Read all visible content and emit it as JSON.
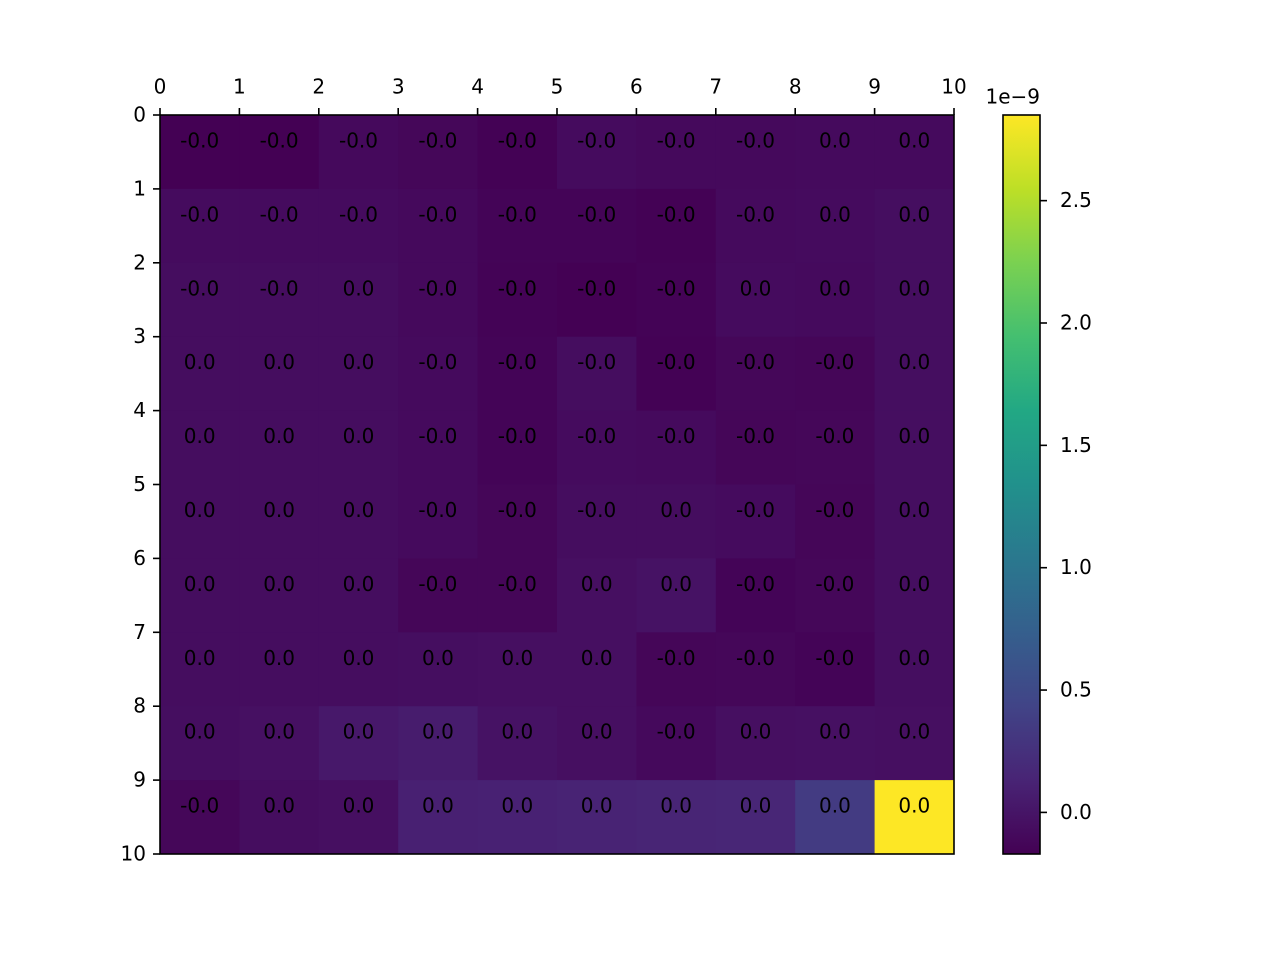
{
  "chart_data": {
    "type": "heatmap",
    "title": "",
    "xlabel": "",
    "ylabel": "",
    "x_ticks": [
      "0",
      "1",
      "2",
      "3",
      "4",
      "5",
      "6",
      "7",
      "8",
      "9",
      "10"
    ],
    "y_ticks": [
      "0",
      "1",
      "2",
      "3",
      "4",
      "5",
      "6",
      "7",
      "8",
      "9",
      "10"
    ],
    "x_tick_position": "top",
    "grid": false,
    "colormap": "viridis",
    "cell_labels": [
      [
        "-0.0",
        "-0.0",
        "-0.0",
        "-0.0",
        "-0.0",
        "-0.0",
        "-0.0",
        "-0.0",
        "0.0",
        "0.0"
      ],
      [
        "-0.0",
        "-0.0",
        "-0.0",
        "-0.0",
        "-0.0",
        "-0.0",
        "-0.0",
        "-0.0",
        "0.0",
        "0.0"
      ],
      [
        "-0.0",
        "-0.0",
        "0.0",
        "-0.0",
        "-0.0",
        "-0.0",
        "-0.0",
        "0.0",
        "0.0",
        "0.0"
      ],
      [
        "0.0",
        "0.0",
        "0.0",
        "-0.0",
        "-0.0",
        "-0.0",
        "-0.0",
        "-0.0",
        "-0.0",
        "0.0"
      ],
      [
        "0.0",
        "0.0",
        "0.0",
        "-0.0",
        "-0.0",
        "-0.0",
        "-0.0",
        "-0.0",
        "-0.0",
        "0.0"
      ],
      [
        "0.0",
        "0.0",
        "0.0",
        "-0.0",
        "-0.0",
        "-0.0",
        "0.0",
        "-0.0",
        "-0.0",
        "0.0"
      ],
      [
        "0.0",
        "0.0",
        "0.0",
        "-0.0",
        "-0.0",
        "0.0",
        "0.0",
        "-0.0",
        "-0.0",
        "0.0"
      ],
      [
        "0.0",
        "0.0",
        "0.0",
        "0.0",
        "0.0",
        "0.0",
        "-0.0",
        "-0.0",
        "-0.0",
        "0.0"
      ],
      [
        "0.0",
        "0.0",
        "0.0",
        "0.0",
        "0.0",
        "0.0",
        "-0.0",
        "0.0",
        "0.0",
        "0.0"
      ],
      [
        "-0.0",
        "0.0",
        "0.0",
        "0.0",
        "0.0",
        "0.0",
        "0.0",
        "0.0",
        "0.0",
        "0.0"
      ]
    ],
    "values": [
      [
        -0.17,
        -0.17,
        -0.1,
        -0.12,
        -0.16,
        -0.08,
        -0.1,
        -0.1,
        -0.09,
        -0.09
      ],
      [
        -0.08,
        -0.08,
        -0.08,
        -0.1,
        -0.14,
        -0.14,
        -0.16,
        -0.09,
        -0.08,
        -0.06
      ],
      [
        -0.07,
        -0.07,
        -0.07,
        -0.1,
        -0.15,
        -0.17,
        -0.15,
        -0.08,
        -0.09,
        -0.06
      ],
      [
        -0.07,
        -0.07,
        -0.07,
        -0.09,
        -0.14,
        -0.07,
        -0.16,
        -0.12,
        -0.13,
        -0.06
      ],
      [
        -0.07,
        -0.07,
        -0.07,
        -0.09,
        -0.14,
        -0.08,
        -0.09,
        -0.13,
        -0.12,
        -0.06
      ],
      [
        -0.07,
        -0.07,
        -0.07,
        -0.09,
        -0.13,
        -0.07,
        -0.07,
        -0.08,
        -0.13,
        -0.06
      ],
      [
        -0.07,
        -0.07,
        -0.07,
        -0.13,
        -0.13,
        -0.05,
        -0.02,
        -0.14,
        -0.12,
        -0.06
      ],
      [
        -0.07,
        -0.07,
        -0.07,
        -0.06,
        -0.05,
        -0.05,
        -0.13,
        -0.12,
        -0.14,
        -0.06
      ],
      [
        -0.06,
        -0.04,
        0.03,
        0.06,
        -0.02,
        -0.05,
        -0.1,
        -0.05,
        -0.04,
        -0.05
      ],
      [
        -0.12,
        -0.07,
        -0.05,
        0.1,
        0.11,
        0.12,
        0.14,
        0.15,
        0.35,
        2.85
      ]
    ],
    "colorbar": {
      "range": [
        -0.17,
        2.85
      ],
      "ticks": [
        0.0,
        0.5,
        1.0,
        1.5,
        2.0,
        2.5
      ],
      "tick_labels": [
        "0.0",
        "0.5",
        "1.0",
        "1.5",
        "2.0",
        "2.5"
      ],
      "exponent_label": "1e−9"
    }
  }
}
